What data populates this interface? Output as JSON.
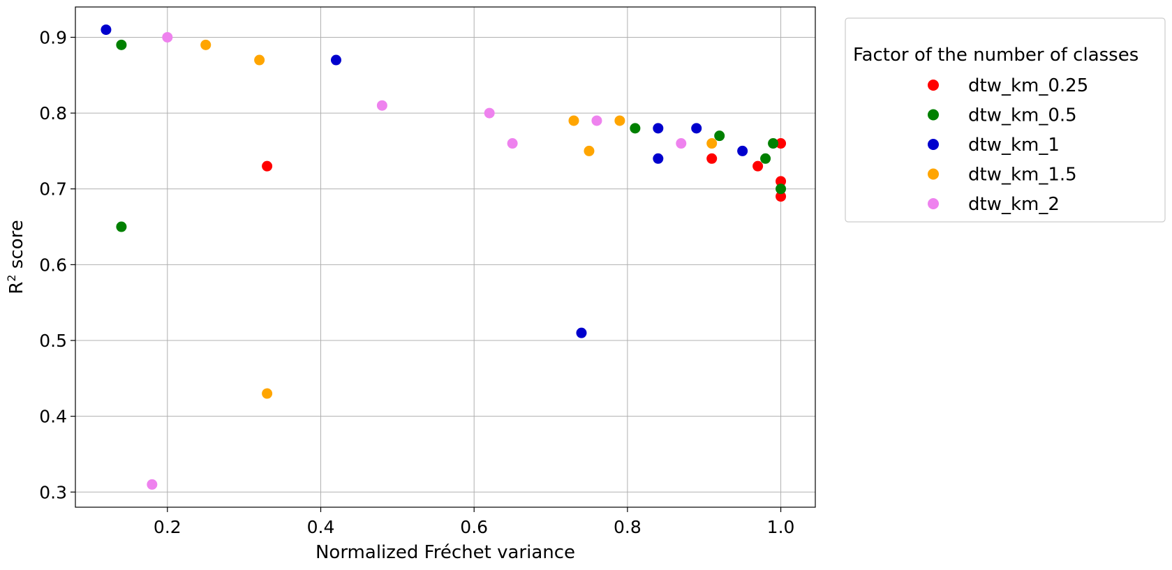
{
  "chart_data": {
    "type": "scatter",
    "xlabel": "Normalized Fréchet variance",
    "ylabel_base": "R",
    "ylabel_sup": "2",
    "ylabel_rest": " score",
    "xlim": [
      0.08,
      1.045
    ],
    "ylim": [
      0.28,
      0.94
    ],
    "xticks": [
      0.2,
      0.4,
      0.6,
      0.8,
      1.0
    ],
    "xtick_labels": [
      "0.2",
      "0.4",
      "0.6",
      "0.8",
      "1.0"
    ],
    "yticks": [
      0.3,
      0.4,
      0.5,
      0.6,
      0.7,
      0.8,
      0.9
    ],
    "ytick_labels": [
      "0.3",
      "0.4",
      "0.5",
      "0.6",
      "0.7",
      "0.8",
      "0.9"
    ],
    "grid": true,
    "legend_placement": "outside right, top",
    "legend_title": "Factor of the number of classes",
    "series": [
      {
        "name": "dtw_km_0.25",
        "color": "#ff0000",
        "points": [
          [
            0.33,
            0.73
          ],
          [
            0.91,
            0.74
          ],
          [
            0.97,
            0.73
          ],
          [
            1.0,
            0.76
          ],
          [
            1.0,
            0.71
          ],
          [
            1.0,
            0.69
          ]
        ]
      },
      {
        "name": "dtw_km_0.5",
        "color": "#008000",
        "points": [
          [
            0.14,
            0.89
          ],
          [
            0.14,
            0.65
          ],
          [
            0.81,
            0.78
          ],
          [
            0.92,
            0.77
          ],
          [
            0.98,
            0.74
          ],
          [
            0.99,
            0.76
          ],
          [
            1.0,
            0.7
          ]
        ]
      },
      {
        "name": "dtw_km_1",
        "color": "#0000cd",
        "points": [
          [
            0.12,
            0.91
          ],
          [
            0.42,
            0.87
          ],
          [
            0.74,
            0.51
          ],
          [
            0.84,
            0.78
          ],
          [
            0.84,
            0.74
          ],
          [
            0.89,
            0.78
          ],
          [
            0.95,
            0.75
          ]
        ]
      },
      {
        "name": "dtw_km_1.5",
        "color": "#ffa500",
        "points": [
          [
            0.25,
            0.89
          ],
          [
            0.32,
            0.87
          ],
          [
            0.33,
            0.43
          ],
          [
            0.73,
            0.79
          ],
          [
            0.75,
            0.75
          ],
          [
            0.79,
            0.79
          ],
          [
            0.91,
            0.76
          ]
        ]
      },
      {
        "name": "dtw_km_2",
        "color": "#ee82ee",
        "points": [
          [
            0.2,
            0.9
          ],
          [
            0.18,
            0.31
          ],
          [
            0.48,
            0.81
          ],
          [
            0.62,
            0.8
          ],
          [
            0.65,
            0.76
          ],
          [
            0.76,
            0.79
          ],
          [
            0.87,
            0.76
          ]
        ]
      }
    ]
  }
}
